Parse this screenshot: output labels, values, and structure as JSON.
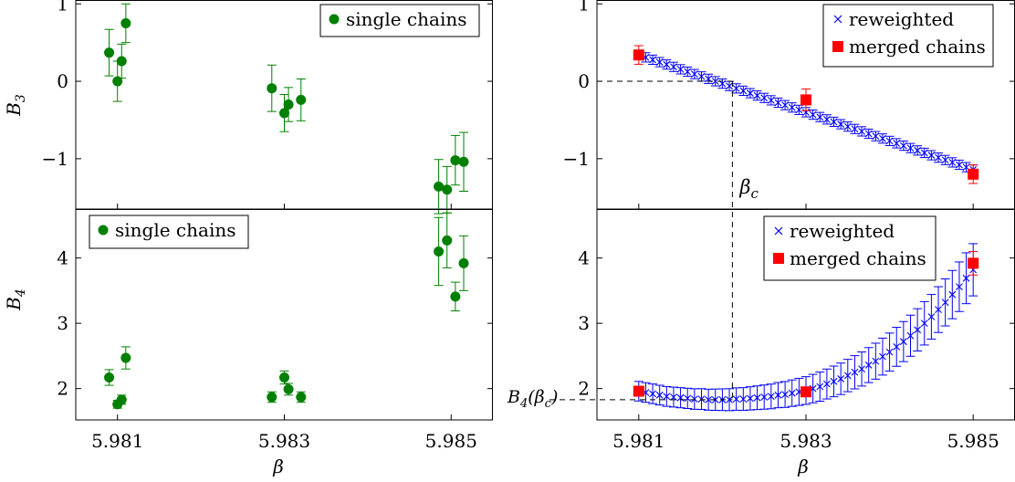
{
  "chart_data": [
    {
      "id": "top-left",
      "type": "scatter",
      "ylabel": "B₃",
      "xlabel": "",
      "xlim": [
        5.9805,
        5.9855
      ],
      "ylim": [
        -1.65,
        1.05
      ],
      "yticks": [
        1,
        0,
        -1
      ],
      "ytick_labels": [
        "1",
        "0",
        "−1"
      ],
      "grid": false,
      "legend": {
        "position": "top-right",
        "entries": [
          "single chains"
        ]
      },
      "series": [
        {
          "name": "single chains",
          "color": "#008000",
          "marker": "circle",
          "points": [
            {
              "x": 5.9809,
              "y": 0.37,
              "err": 0.3
            },
            {
              "x": 5.981,
              "y": 0.0,
              "err": 0.26
            },
            {
              "x": 5.98105,
              "y": 0.26,
              "err": 0.22
            },
            {
              "x": 5.9811,
              "y": 0.75,
              "err": 0.25
            },
            {
              "x": 5.98285,
              "y": -0.09,
              "err": 0.3
            },
            {
              "x": 5.983,
              "y": -0.41,
              "err": 0.24
            },
            {
              "x": 5.98305,
              "y": -0.3,
              "err": 0.22
            },
            {
              "x": 5.9832,
              "y": -0.24,
              "err": 0.27
            },
            {
              "x": 5.98485,
              "y": -1.36,
              "err": 0.35
            },
            {
              "x": 5.98495,
              "y": -1.4,
              "err": 0.3
            },
            {
              "x": 5.98505,
              "y": -1.02,
              "err": 0.32
            },
            {
              "x": 5.98515,
              "y": -1.04,
              "err": 0.38
            }
          ]
        }
      ]
    },
    {
      "id": "bottom-left",
      "type": "scatter",
      "ylabel": "B₄",
      "xlabel": "β",
      "xlim": [
        5.9805,
        5.9855
      ],
      "ylim": [
        1.52,
        4.75
      ],
      "yticks": [
        2,
        3,
        4
      ],
      "ytick_labels": [
        "2",
        "3",
        "4"
      ],
      "xticks": [
        5.981,
        5.983,
        5.985
      ],
      "xtick_labels": [
        "5.981",
        "5.983",
        "5.985"
      ],
      "grid": false,
      "legend": {
        "position": "top-left",
        "entries": [
          "single chains"
        ]
      },
      "series": [
        {
          "name": "single chains",
          "color": "#008000",
          "marker": "circle",
          "points": [
            {
              "x": 5.9809,
              "y": 2.17,
              "err": 0.12
            },
            {
              "x": 5.981,
              "y": 1.76,
              "err": 0.06
            },
            {
              "x": 5.98105,
              "y": 1.83,
              "err": 0.07
            },
            {
              "x": 5.9811,
              "y": 2.47,
              "err": 0.17
            },
            {
              "x": 5.98285,
              "y": 1.87,
              "err": 0.08
            },
            {
              "x": 5.983,
              "y": 2.17,
              "err": 0.1
            },
            {
              "x": 5.98305,
              "y": 1.99,
              "err": 0.09
            },
            {
              "x": 5.9832,
              "y": 1.87,
              "err": 0.08
            },
            {
              "x": 5.98485,
              "y": 4.1,
              "err": 0.52
            },
            {
              "x": 5.98495,
              "y": 4.27,
              "err": 0.42
            },
            {
              "x": 5.98505,
              "y": 3.41,
              "err": 0.22
            },
            {
              "x": 5.98515,
              "y": 3.92,
              "err": 0.42
            }
          ]
        }
      ]
    },
    {
      "id": "top-right",
      "type": "scatter",
      "ylabel": "",
      "xlabel": "",
      "xlim": [
        5.9805,
        5.9855
      ],
      "ylim": [
        -1.65,
        1.05
      ],
      "yticks": [
        1,
        0,
        -1
      ],
      "ytick_labels": [
        "1",
        "0",
        "−1"
      ],
      "grid": false,
      "legend": {
        "position": "top-right",
        "entries": [
          "reweighted",
          "merged chains"
        ]
      },
      "annotation": {
        "text": "βc",
        "x": 5.98212,
        "y": 0
      },
      "reweighted": {
        "color": "#0000ff",
        "marker": "cross",
        "x_start": 5.981,
        "x_end": 5.985,
        "count": 49,
        "y_start": 0.34,
        "y_end": -1.14,
        "err": 0.06
      },
      "merged": {
        "color": "#ff0000",
        "marker": "square",
        "points": [
          {
            "x": 5.981,
            "y": 0.34,
            "err": 0.12
          },
          {
            "x": 5.983,
            "y": -0.24,
            "err": 0.14
          },
          {
            "x": 5.985,
            "y": -1.2,
            "err": 0.12
          }
        ]
      }
    },
    {
      "id": "bottom-right",
      "type": "scatter",
      "ylabel": "",
      "xlabel": "β",
      "xlim": [
        5.9805,
        5.9855
      ],
      "ylim": [
        1.52,
        4.75
      ],
      "yticks": [
        2,
        3,
        4
      ],
      "ytick_labels": [
        "2",
        "3",
        "4"
      ],
      "xticks": [
        5.981,
        5.983,
        5.985
      ],
      "xtick_labels": [
        "5.981",
        "5.983",
        "5.985"
      ],
      "grid": false,
      "legend": {
        "position": "top-right",
        "entries": [
          "reweighted",
          "merged chains"
        ]
      },
      "annotation": {
        "text": "B4(βc)",
        "x": 5.98212,
        "y": 1.83
      },
      "reweighted": {
        "color": "#0000ff",
        "marker": "cross",
        "x_start": 5.981,
        "x_end": 5.985,
        "count": 49,
        "y_values": [
          1.96,
          1.94,
          1.92,
          1.9,
          1.88,
          1.87,
          1.86,
          1.85,
          1.84,
          1.84,
          1.83,
          1.83,
          1.83,
          1.83,
          1.84,
          1.84,
          1.85,
          1.86,
          1.87,
          1.88,
          1.9,
          1.91,
          1.93,
          1.95,
          1.97,
          2.0,
          2.03,
          2.07,
          2.11,
          2.15,
          2.2,
          2.25,
          2.3,
          2.36,
          2.42,
          2.49,
          2.56,
          2.64,
          2.72,
          2.81,
          2.9,
          3.0,
          3.1,
          3.21,
          3.32,
          3.44,
          3.56,
          3.69,
          3.82
        ],
        "err_start": 0.15,
        "err_end": 0.4
      },
      "merged": {
        "color": "#ff0000",
        "marker": "square",
        "points": [
          {
            "x": 5.981,
            "y": 1.96,
            "err": 0.06
          },
          {
            "x": 5.983,
            "y": 1.95,
            "err": 0.06
          },
          {
            "x": 5.985,
            "y": 3.92,
            "err": 0.18
          }
        ]
      }
    }
  ]
}
